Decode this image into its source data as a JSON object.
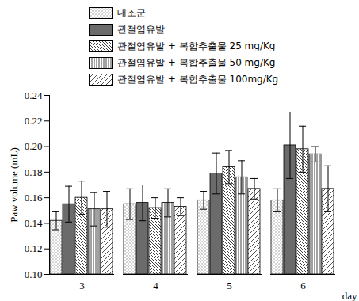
{
  "chart_data": {
    "type": "bar",
    "categories": [
      "3",
      "4",
      "5",
      "6"
    ],
    "x_label": "day",
    "y_label": "Paw volume (mL)",
    "ylim": [
      0.1,
      0.24
    ],
    "yticks": [
      {
        "value": 0.1,
        "label": "0.10"
      },
      {
        "value": 0.12,
        "label": "0.12"
      },
      {
        "value": 0.14,
        "label": "0.14"
      },
      {
        "value": 0.16,
        "label": "0.16"
      },
      {
        "value": 0.18,
        "label": "0.18"
      },
      {
        "value": 0.2,
        "label": "0.20"
      },
      {
        "value": 0.22,
        "label": "0.22"
      },
      {
        "value": 0.24,
        "label": "0.24"
      }
    ],
    "legend": "top-left",
    "series": [
      {
        "name": "대조군",
        "color": "#8a8a8a",
        "values": [
          0.142,
          0.155,
          0.158,
          0.158
        ],
        "errors": [
          0.007,
          0.012,
          0.007,
          0.009
        ]
      },
      {
        "name": "관절염유발",
        "color": "#6b6b6b",
        "values": [
          0.155,
          0.156,
          0.179,
          0.201
        ],
        "errors": [
          0.014,
          0.014,
          0.016,
          0.026
        ]
      },
      {
        "name": "관절염유발 + 복합추출물 25 mg/Kg",
        "color": "#444444",
        "values": [
          0.16,
          0.152,
          0.184,
          0.198
        ],
        "errors": [
          0.013,
          0.008,
          0.013,
          0.018
        ]
      },
      {
        "name": "관절염유발 + 복합추출물 50 mg/Kg",
        "color": "#444444",
        "values": [
          0.151,
          0.156,
          0.176,
          0.194
        ],
        "errors": [
          0.013,
          0.011,
          0.013,
          0.006
        ]
      },
      {
        "name": "관절염유발 + 복합추출물 100mg/Kg",
        "color": "#555555",
        "values": [
          0.151,
          0.153,
          0.167,
          0.167
        ],
        "errors": [
          0.014,
          0.007,
          0.008,
          0.018
        ]
      }
    ]
  }
}
